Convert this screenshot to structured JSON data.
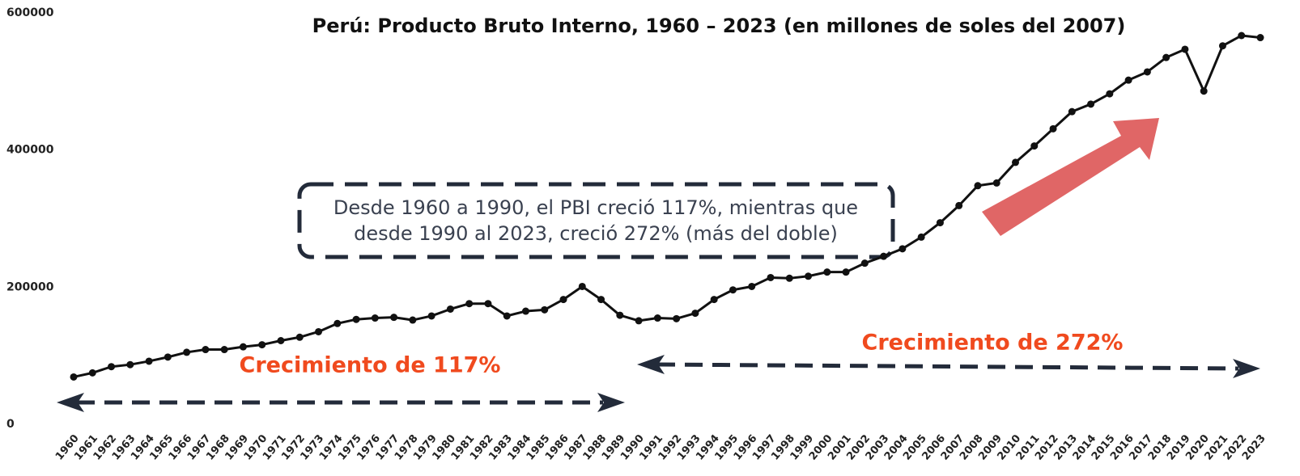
{
  "chart_data": {
    "type": "line",
    "title": "Perú: Producto Bruto Interno, 1960 – 2023  (en millones de soles del 2007)",
    "annotations": [
      "Desde 1960 a 1990, el PBI creció 117%, mientras que",
      "desde 1990 al 2023, creció 272% (más del doble)",
      "Crecimiento de 117%",
      "Crecimiento de 272%"
    ],
    "categories": [
      "1960",
      "1961",
      "1962",
      "1963",
      "1964",
      "1965",
      "1966",
      "1967",
      "1968",
      "1969",
      "1970",
      "1971",
      "1972",
      "1973",
      "1974",
      "1975",
      "1976",
      "1977",
      "1978",
      "1979",
      "1980",
      "1981",
      "1982",
      "1983",
      "1984",
      "1985",
      "1986",
      "1987",
      "1988",
      "1989",
      "1990",
      "1991",
      "1992",
      "1993",
      "1994",
      "1995",
      "1996",
      "1997",
      "1998",
      "1999",
      "2000",
      "2001",
      "2002",
      "2003",
      "2004",
      "2005",
      "2006",
      "2007",
      "2008",
      "2009",
      "2010",
      "2011",
      "2012",
      "2013",
      "2014",
      "2015",
      "2016",
      "2017",
      "2018",
      "2019",
      "2020",
      "2021",
      "2022",
      "2023"
    ],
    "values": [
      69000,
      75000,
      84000,
      87000,
      92000,
      98000,
      105000,
      109000,
      109000,
      113000,
      116000,
      122000,
      127000,
      135000,
      147000,
      153000,
      155000,
      156000,
      152000,
      158000,
      168000,
      176000,
      176000,
      158000,
      165000,
      167000,
      182000,
      201000,
      182000,
      159000,
      151000,
      155000,
      154000,
      162000,
      182000,
      196000,
      201000,
      214000,
      213000,
      216000,
      222000,
      222000,
      235000,
      245000,
      256000,
      273000,
      294000,
      319000,
      348000,
      352000,
      382000,
      406000,
      431000,
      456000,
      467000,
      482000,
      502000,
      514000,
      535000,
      547000,
      486000,
      552000,
      567000,
      564000
    ],
    "color": "#111111",
    "ylim": [
      0,
      600000
    ],
    "yticks": [
      0,
      200000,
      400000,
      600000
    ],
    "grid": false
  }
}
